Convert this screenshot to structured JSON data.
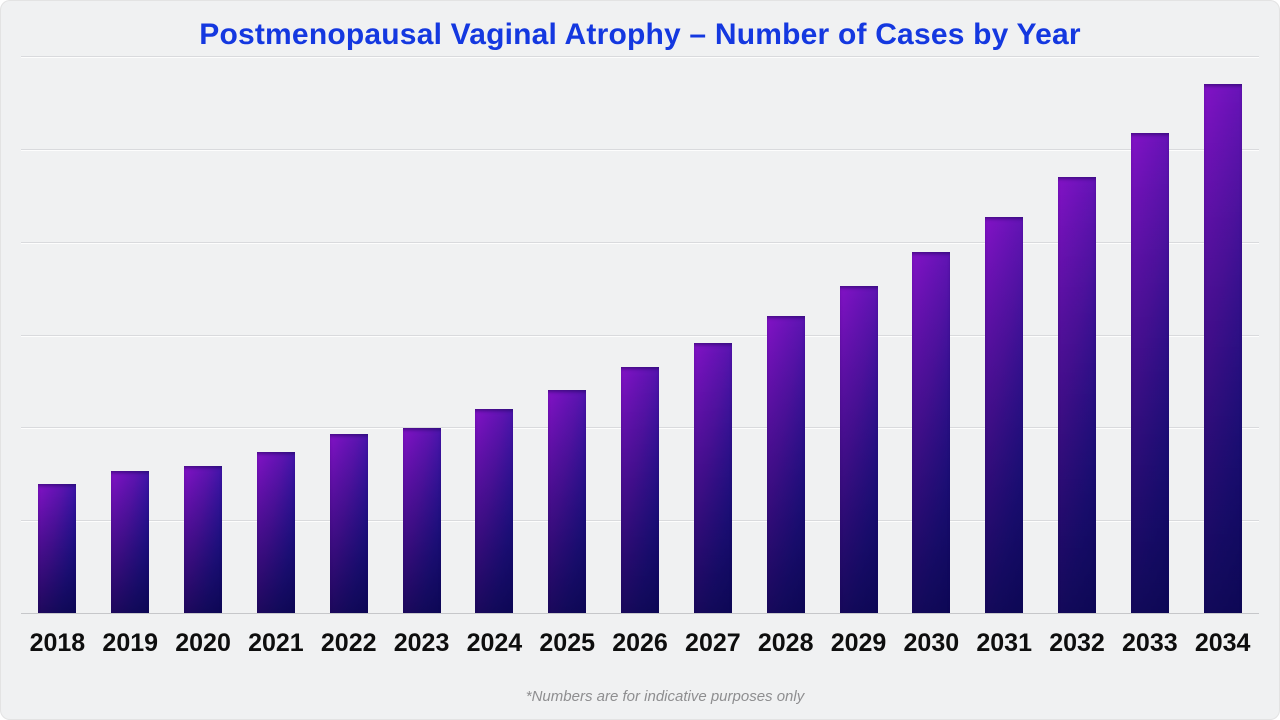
{
  "page": {
    "background_color": "#f0f1f2",
    "title_color": "#1438e0",
    "x_label_color": "#0e0e0e",
    "footnote_color": "#8e8e90",
    "gridline_color": "#d9dadd",
    "axis_line_color": "#c6c7ca"
  },
  "chart_data": {
    "type": "bar",
    "title": "Postmenopausal Vaginal Atrophy – Number of Cases by Year",
    "categories": [
      "2018",
      "2019",
      "2020",
      "2021",
      "2022",
      "2023",
      "2024",
      "2025",
      "2026",
      "2027",
      "2028",
      "2029",
      "2030",
      "2031",
      "2032",
      "2033",
      "2034"
    ],
    "values": [
      23.2,
      25.5,
      26.4,
      28.9,
      32.1,
      33.2,
      36.6,
      40.0,
      44.2,
      48.5,
      53.3,
      58.7,
      64.8,
      71.1,
      78.3,
      86.2,
      95.0
    ],
    "xlabel": "",
    "ylabel": "",
    "ylim": [
      0,
      100
    ],
    "y_tick_labels_visible": false,
    "y_gridline_count": 6,
    "grid": true,
    "legend": false,
    "footnote": "*Numbers are for indicative purposes only",
    "bar_gradient": {
      "top_left": "#8312c6",
      "top_right": "#1b1095",
      "bottom_left": "#241489",
      "bottom_right": "#070350"
    }
  }
}
